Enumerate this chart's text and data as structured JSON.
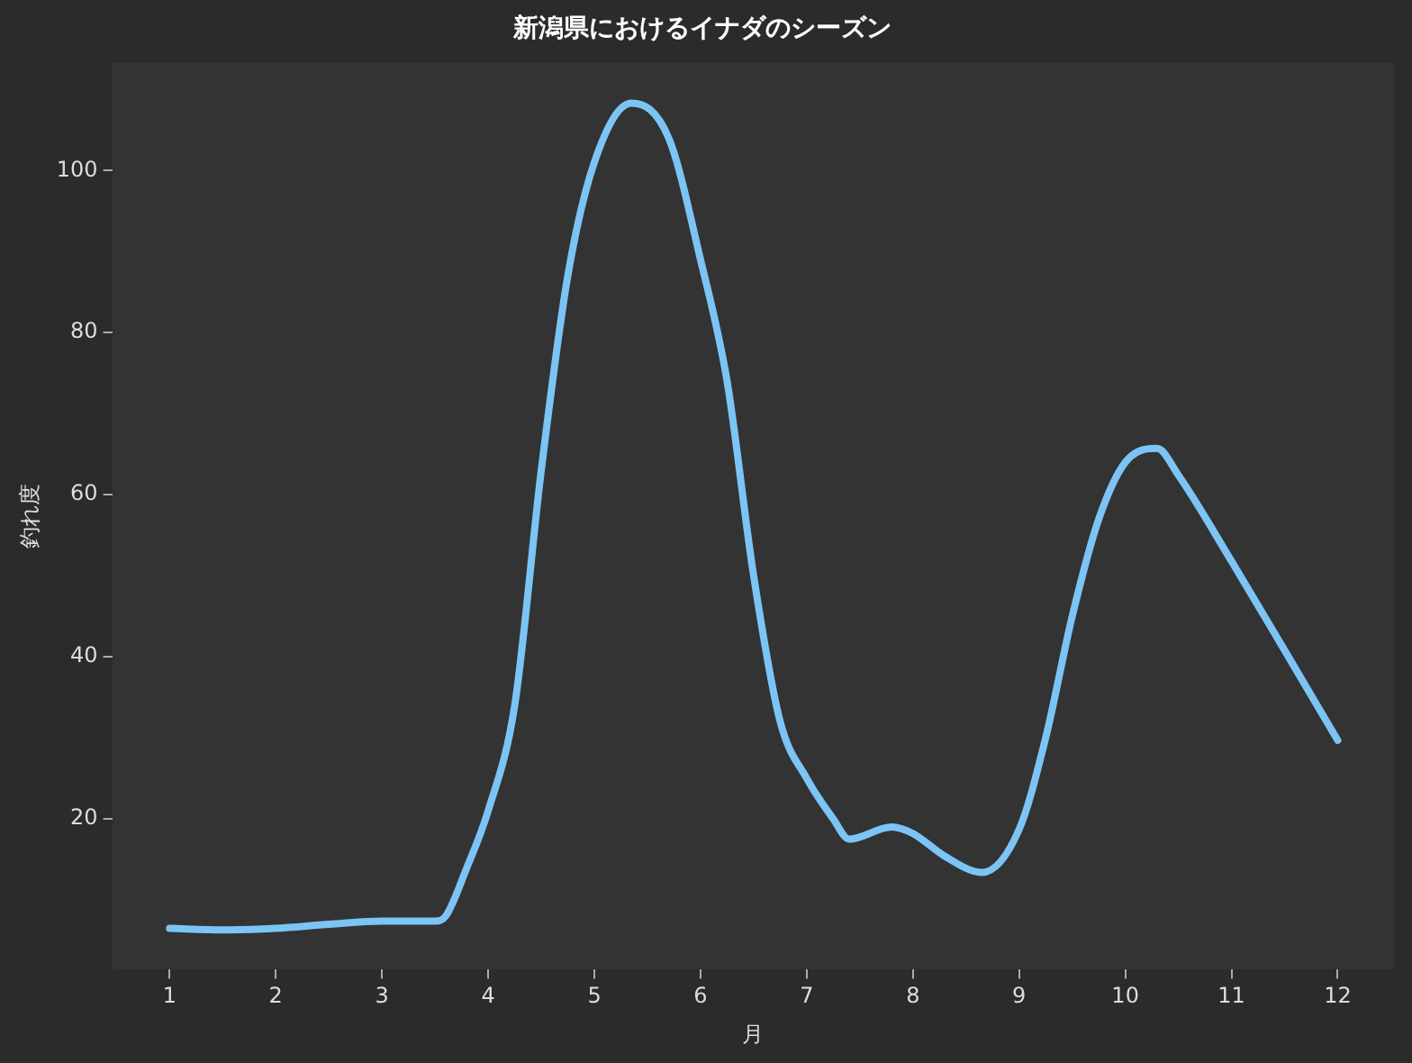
{
  "chart_data": {
    "type": "line",
    "title": "新潟県におけるイナダのシーズン",
    "xlabel": "月",
    "ylabel": "釣れ度",
    "x": [
      1,
      1.5,
      2,
      2.5,
      3,
      3.5,
      3.6,
      3.8,
      4,
      4.25,
      4.5,
      4.75,
      5,
      5.35,
      5.7,
      6,
      6.25,
      6.5,
      6.75,
      7,
      7.25,
      7.4,
      7.8,
      8,
      8.3,
      8.65,
      9,
      9.25,
      9.5,
      9.75,
      10,
      10.3,
      10.5,
      11,
      11.5,
      12
    ],
    "series": [
      {
        "color": "#7cc4f5",
        "values": [
          6.5,
          6.3,
          6.5,
          7,
          7.4,
          7.4,
          8,
          14,
          21,
          34,
          63,
          87,
          101,
          108.3,
          104,
          89,
          74,
          50,
          32,
          25,
          20,
          17.5,
          19,
          18.2,
          15.4,
          13.4,
          18.7,
          30,
          45,
          57,
          64,
          65.7,
          62.4,
          51.8,
          40.8,
          29.7
        ]
      }
    ],
    "xlim": [
      0.46,
      12.53
    ],
    "ylim": [
      1.4,
      113.3
    ],
    "xticks": [
      1,
      2,
      3,
      4,
      5,
      6,
      7,
      8,
      9,
      10,
      11,
      12
    ],
    "yticks": [
      20,
      40,
      60,
      80,
      100
    ],
    "grid": false,
    "marker": "none",
    "line_style": "solid"
  }
}
